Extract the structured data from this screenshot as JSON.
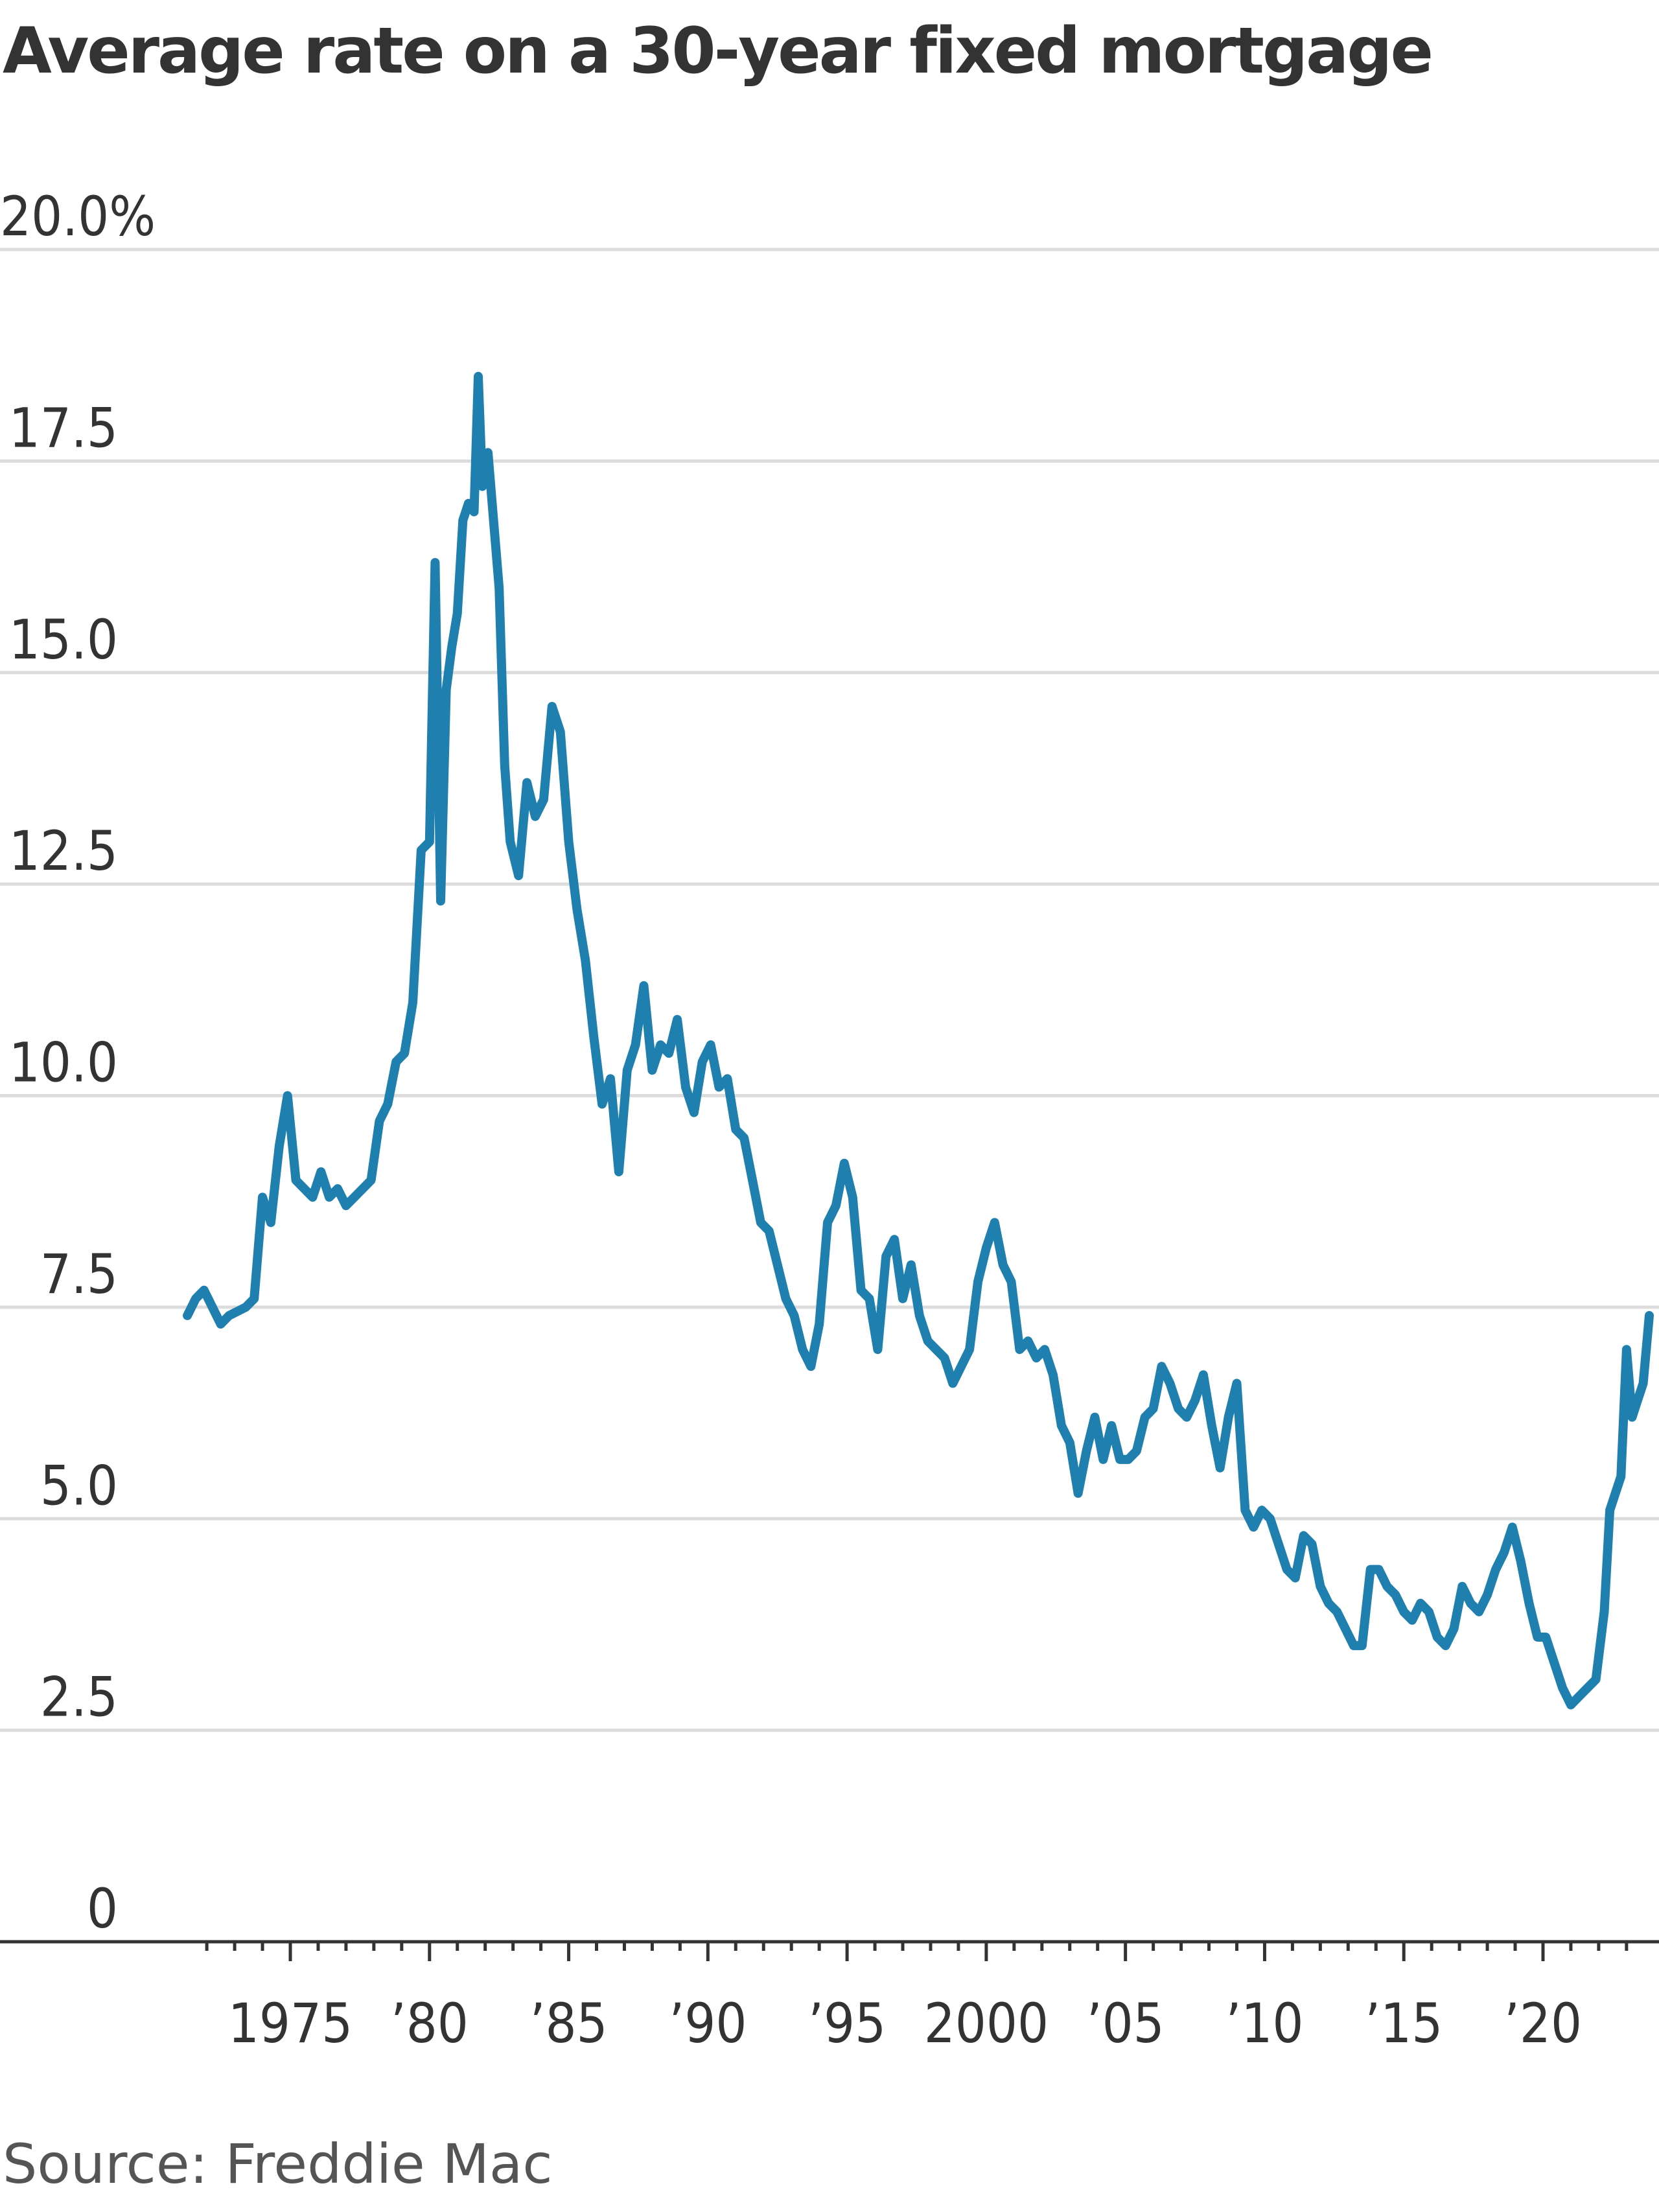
{
  "chart_data": {
    "type": "line",
    "title": "Average rate on a 30-year fixed mortgage",
    "xlabel": "",
    "ylabel": "",
    "source": "Source: Freddie Mac",
    "ylim": [
      0,
      20
    ],
    "xlim": [
      1971.3,
      2023.9
    ],
    "grid": true,
    "y_ticks": [
      {
        "value": 20,
        "label": "20.0%"
      },
      {
        "value": 17.5,
        "label": "17.5"
      },
      {
        "value": 15,
        "label": "15.0"
      },
      {
        "value": 12.5,
        "label": "12.5"
      },
      {
        "value": 10,
        "label": "10.0"
      },
      {
        "value": 7.5,
        "label": "7.5"
      },
      {
        "value": 5,
        "label": "5.0"
      },
      {
        "value": 2.5,
        "label": "2.5"
      },
      {
        "value": 0,
        "label": "0"
      }
    ],
    "x_ticks": [
      {
        "value": 1975,
        "label": "1975"
      },
      {
        "value": 1980,
        "label": "’80"
      },
      {
        "value": 1985,
        "label": "’85"
      },
      {
        "value": 1990,
        "label": "’90"
      },
      {
        "value": 1995,
        "label": "’95"
      },
      {
        "value": 2000,
        "label": "2000"
      },
      {
        "value": 2005,
        "label": "’05"
      },
      {
        "value": 2010,
        "label": "’10"
      },
      {
        "value": 2015,
        "label": "’15"
      },
      {
        "value": 2020,
        "label": "’20"
      }
    ],
    "minor_x_ticks_from": 1972,
    "minor_x_ticks_to": 2023,
    "series": [
      {
        "color": "#1f7fae",
        "x": [
          1971.3,
          1971.6,
          1971.9,
          1972.2,
          1972.5,
          1972.8,
          1973.1,
          1973.4,
          1973.7,
          1974.0,
          1974.3,
          1974.6,
          1974.9,
          1975.2,
          1975.5,
          1975.8,
          1976.1,
          1976.4,
          1976.7,
          1977.0,
          1977.3,
          1977.6,
          1977.9,
          1978.2,
          1978.5,
          1978.8,
          1979.1,
          1979.4,
          1979.7,
          1980.0,
          1980.2,
          1980.4,
          1980.6,
          1980.8,
          1981.0,
          1981.2,
          1981.4,
          1981.6,
          1981.75,
          1981.9,
          1982.1,
          1982.3,
          1982.5,
          1982.7,
          1982.9,
          1983.2,
          1983.5,
          1983.8,
          1984.1,
          1984.4,
          1984.7,
          1985.0,
          1985.3,
          1985.6,
          1985.9,
          1986.2,
          1986.5,
          1986.8,
          1987.1,
          1987.4,
          1987.7,
          1988.0,
          1988.3,
          1988.6,
          1988.9,
          1989.2,
          1989.5,
          1989.8,
          1990.1,
          1990.4,
          1990.7,
          1991.0,
          1991.3,
          1991.6,
          1991.9,
          1992.2,
          1992.5,
          1992.8,
          1993.1,
          1993.4,
          1993.7,
          1994.0,
          1994.3,
          1994.6,
          1994.9,
          1995.2,
          1995.5,
          1995.8,
          1996.1,
          1996.4,
          1996.7,
          1997.0,
          1997.3,
          1997.6,
          1997.9,
          1998.2,
          1998.5,
          1998.8,
          1999.1,
          1999.4,
          1999.7,
          2000.0,
          2000.3,
          2000.6,
          2000.9,
          2001.2,
          2001.5,
          2001.8,
          2002.1,
          2002.4,
          2002.7,
          2003.0,
          2003.3,
          2003.6,
          2003.9,
          2004.2,
          2004.5,
          2004.8,
          2005.1,
          2005.4,
          2005.7,
          2006.0,
          2006.3,
          2006.6,
          2006.9,
          2007.2,
          2007.5,
          2007.8,
          2008.1,
          2008.4,
          2008.7,
          2009.0,
          2009.3,
          2009.6,
          2009.9,
          2010.2,
          2010.5,
          2010.8,
          2011.1,
          2011.4,
          2011.7,
          2012.0,
          2012.3,
          2012.6,
          2012.9,
          2013.2,
          2013.5,
          2013.8,
          2014.1,
          2014.4,
          2014.7,
          2015.0,
          2015.3,
          2015.6,
          2015.9,
          2016.2,
          2016.5,
          2016.8,
          2017.1,
          2017.4,
          2017.7,
          2018.0,
          2018.3,
          2018.6,
          2018.9,
          2019.2,
          2019.5,
          2019.8,
          2020.1,
          2020.4,
          2020.7,
          2021.0,
          2021.3,
          2021.6,
          2021.9,
          2022.2,
          2022.4,
          2022.6,
          2022.8,
          2023.0,
          2023.2,
          2023.4,
          2023.6,
          2023.9
        ],
        "y": [
          7.4,
          7.6,
          7.7,
          7.5,
          7.3,
          7.4,
          7.45,
          7.5,
          7.6,
          8.8,
          8.5,
          9.4,
          10.0,
          9.0,
          8.9,
          8.8,
          9.1,
          8.8,
          8.9,
          8.7,
          8.8,
          8.9,
          9.0,
          9.7,
          9.9,
          10.4,
          10.5,
          11.1,
          12.9,
          13.0,
          16.3,
          12.3,
          14.8,
          15.3,
          15.7,
          16.8,
          17.0,
          16.9,
          18.5,
          17.2,
          17.6,
          16.8,
          16.0,
          13.9,
          13.0,
          12.6,
          13.7,
          13.3,
          13.5,
          14.6,
          14.3,
          13.0,
          12.2,
          11.6,
          10.7,
          9.9,
          10.2,
          9.1,
          10.3,
          10.6,
          11.3,
          10.3,
          10.6,
          10.5,
          10.9,
          10.1,
          9.8,
          10.4,
          10.6,
          10.1,
          10.2,
          9.6,
          9.5,
          9.0,
          8.5,
          8.4,
          8.0,
          7.6,
          7.4,
          7.0,
          6.8,
          7.3,
          8.5,
          8.7,
          9.2,
          8.8,
          7.7,
          7.6,
          7.0,
          8.1,
          8.3,
          7.6,
          8.0,
          7.4,
          7.1,
          7.0,
          6.9,
          6.6,
          6.8,
          7.0,
          7.8,
          8.2,
          8.5,
          8.0,
          7.8,
          7.0,
          7.1,
          6.9,
          7.0,
          6.7,
          6.1,
          5.9,
          5.3,
          5.8,
          6.2,
          5.7,
          6.1,
          5.7,
          5.7,
          5.8,
          6.2,
          6.3,
          6.8,
          6.6,
          6.3,
          6.2,
          6.4,
          6.7,
          6.1,
          5.6,
          6.2,
          6.6,
          5.1,
          4.9,
          5.1,
          5.0,
          4.7,
          4.4,
          4.3,
          4.8,
          4.7,
          4.2,
          4.0,
          3.9,
          3.7,
          3.5,
          3.5,
          4.4,
          4.4,
          4.2,
          4.1,
          3.9,
          3.8,
          4.0,
          3.9,
          3.6,
          3.5,
          3.7,
          4.2,
          4.0,
          3.9,
          4.1,
          4.4,
          4.6,
          4.9,
          4.5,
          4.0,
          3.6,
          3.6,
          3.3,
          3.0,
          2.8,
          2.9,
          3.0,
          3.1,
          3.9,
          5.1,
          5.3,
          5.5,
          7.0,
          6.2,
          6.4,
          6.6,
          7.4
        ]
      }
    ]
  }
}
